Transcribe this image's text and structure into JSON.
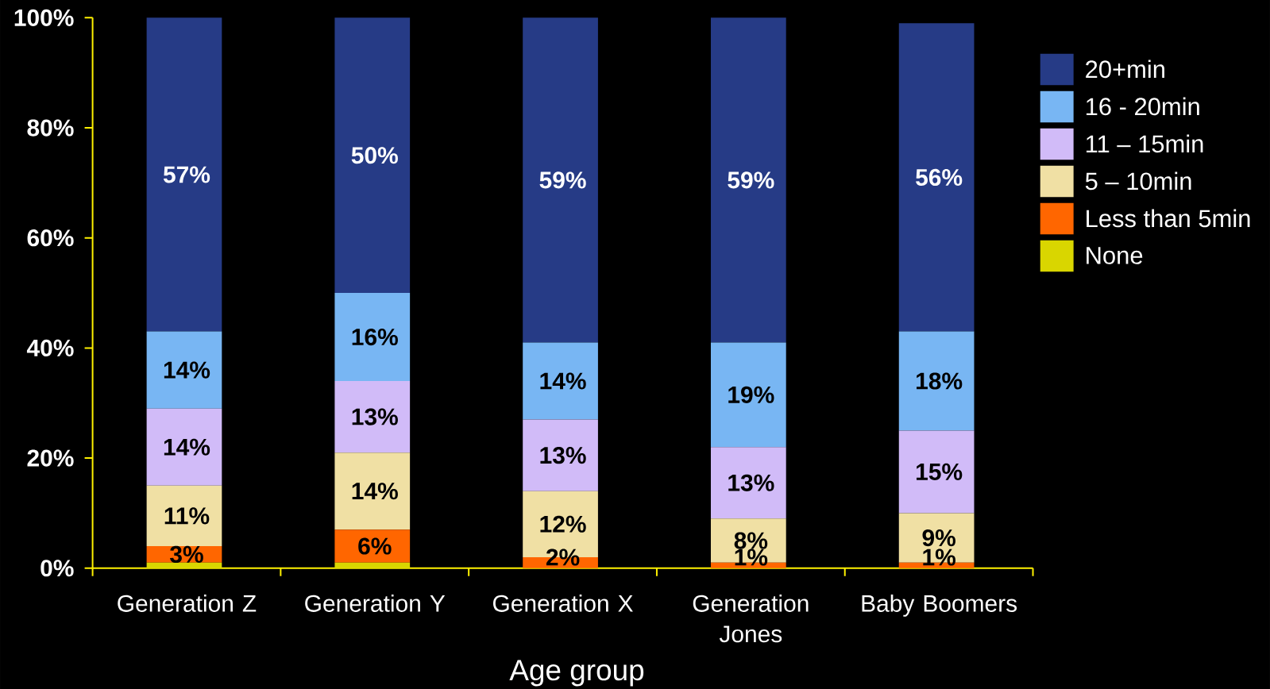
{
  "chart_data": {
    "type": "bar",
    "stacked": true,
    "xlabel": "Age group",
    "categories": [
      "Generation Z",
      "Generation Y",
      "Generation X",
      "Generation Jones",
      "Baby Boomers"
    ],
    "series": [
      {
        "name": "None",
        "color": "#d9d600",
        "values": [
          1,
          1,
          0,
          0,
          0
        ]
      },
      {
        "name": "Less than 5min",
        "color": "#ff6600",
        "values": [
          3,
          6,
          2,
          1,
          1
        ],
        "value_labels": [
          "3%",
          "6%",
          "2%",
          "1%",
          "1%"
        ]
      },
      {
        "name": "5 – 10min",
        "color": "#f0e0a4",
        "values": [
          11,
          14,
          12,
          8,
          9
        ],
        "value_labels": [
          "11%",
          "14%",
          "12%",
          "8%",
          "9%"
        ]
      },
      {
        "name": "11 – 15min",
        "color": "#d1bbf8",
        "values": [
          14,
          13,
          13,
          13,
          15
        ],
        "value_labels": [
          "14%",
          "13%",
          "13%",
          "13%",
          "15%"
        ]
      },
      {
        "name": "16 - 20min",
        "color": "#78b6f3",
        "values": [
          14,
          16,
          14,
          19,
          18
        ],
        "value_labels": [
          "14%",
          "16%",
          "14%",
          "19%",
          "18%"
        ]
      },
      {
        "name": "20+min",
        "color": "#263b86",
        "values": [
          57,
          50,
          59,
          59,
          56
        ],
        "value_labels": [
          "57%",
          "50%",
          "59%",
          "59%",
          "56%"
        ]
      }
    ],
    "ylim": [
      0,
      100
    ],
    "yticks": [
      {
        "value": 0,
        "label": "0%"
      },
      {
        "value": 20,
        "label": "20%"
      },
      {
        "value": 40,
        "label": "40%"
      },
      {
        "value": 60,
        "label": "60%"
      },
      {
        "value": 80,
        "label": "80%"
      },
      {
        "value": 100,
        "label": "100%"
      }
    ],
    "legend": "right"
  }
}
